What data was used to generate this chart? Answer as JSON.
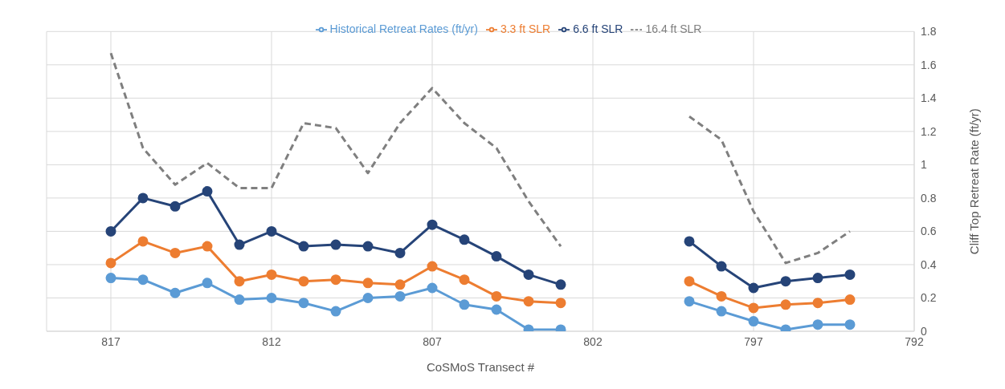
{
  "chart_data": {
    "type": "line",
    "xlabel": "CoSMoS Transect #",
    "ylabel": "Cliff Top Retreat Rate (ft/yr)",
    "x": [
      817,
      816,
      815,
      814,
      813,
      812,
      811,
      810,
      809,
      808,
      807,
      806,
      805,
      804,
      803,
      802,
      801,
      800,
      799,
      798,
      797,
      796,
      795,
      794
    ],
    "xlim": [
      819,
      792
    ],
    "xticks": [
      817,
      812,
      807,
      802,
      797,
      792
    ],
    "ylim": [
      0,
      1.8
    ],
    "yticks": [
      0,
      0.2,
      0.4,
      0.6,
      0.8,
      1,
      1.2,
      1.4,
      1.6,
      1.8
    ],
    "grid": true,
    "legend": "top",
    "series": [
      {
        "name": "Historical Retreat Rates (ft/yr)",
        "color": "#5b9bd5",
        "marker": "circle",
        "line_style": "solid",
        "values": [
          0.32,
          0.31,
          0.23,
          0.29,
          0.19,
          0.2,
          0.17,
          0.12,
          0.2,
          0.21,
          0.26,
          0.16,
          0.13,
          0.01,
          0.01,
          null,
          null,
          null,
          0.18,
          0.12,
          0.06,
          0.01,
          0.04,
          0.04
        ]
      },
      {
        "name": "3.3 ft SLR",
        "color": "#ed7d31",
        "marker": "circle",
        "line_style": "solid",
        "values": [
          0.41,
          0.54,
          0.47,
          0.51,
          0.3,
          0.34,
          0.3,
          0.31,
          0.29,
          0.28,
          0.39,
          0.31,
          0.21,
          0.18,
          0.17,
          null,
          null,
          null,
          0.3,
          0.21,
          0.14,
          0.16,
          0.17,
          0.19
        ]
      },
      {
        "name": "6.6 ft SLR",
        "color": "#264478",
        "marker": "circle",
        "line_style": "solid",
        "values": [
          0.6,
          0.8,
          0.75,
          0.84,
          0.52,
          0.6,
          0.51,
          0.52,
          0.51,
          0.47,
          0.64,
          0.55,
          0.45,
          0.34,
          0.28,
          null,
          null,
          null,
          0.54,
          0.39,
          0.26,
          0.3,
          0.32,
          0.34
        ]
      },
      {
        "name": "16.4 ft SLR",
        "color": "#7f7f7f",
        "marker": "none",
        "line_style": "dashed",
        "values": [
          1.67,
          1.1,
          0.88,
          1.01,
          0.86,
          0.86,
          1.25,
          1.22,
          0.95,
          1.25,
          1.46,
          1.25,
          1.1,
          0.78,
          0.51,
          null,
          null,
          null,
          1.29,
          1.15,
          0.72,
          0.41,
          0.47,
          0.6
        ]
      }
    ]
  }
}
